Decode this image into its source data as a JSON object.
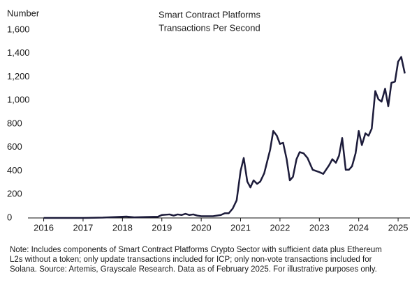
{
  "chart_data": {
    "type": "line",
    "title": [
      "Smart Contract Platforms",
      "Transactions Per Second"
    ],
    "y_label": "Number",
    "note": [
      "Note: Includes components of Smart Contract Platforms Crypto Sector with sufficient data plus Ethereum",
      "L2s without a token; only update transactions included for ICP; only non-vote transactions included for",
      "Solana. Source: Artemis, Grayscale Research. Data as of February 2025. For illustrative purposes only."
    ],
    "x": [
      2016.0,
      2017.0,
      2017.5,
      2018.0,
      2018.1,
      2018.3,
      2018.6,
      2018.9,
      2019.0,
      2019.2,
      2019.3,
      2019.4,
      2019.5,
      2019.6,
      2019.7,
      2019.8,
      2019.9,
      2020.0,
      2020.3,
      2020.5,
      2020.6,
      2020.7,
      2020.8,
      2020.9,
      2021.0,
      2021.08,
      2021.17,
      2021.25,
      2021.33,
      2021.42,
      2021.5,
      2021.6,
      2021.75,
      2021.83,
      2021.92,
      2022.0,
      2022.08,
      2022.17,
      2022.25,
      2022.33,
      2022.42,
      2022.5,
      2022.6,
      2022.7,
      2022.83,
      2023.0,
      2023.1,
      2023.25,
      2023.33,
      2023.42,
      2023.5,
      2023.58,
      2023.67,
      2023.75,
      2023.83,
      2023.92,
      2024.0,
      2024.08,
      2024.17,
      2024.25,
      2024.33,
      2024.42,
      2024.5,
      2024.58,
      2024.67,
      2024.75,
      2024.83,
      2024.92,
      2025.0,
      2025.08,
      2025.17
    ],
    "series": [
      {
        "name": "Transactions Per Second",
        "color": "#1c1b3a",
        "values": [
          0,
          0,
          3,
          10,
          12,
          5,
          8,
          10,
          25,
          30,
          20,
          30,
          25,
          35,
          25,
          30,
          20,
          15,
          15,
          25,
          40,
          40,
          80,
          150,
          400,
          510,
          310,
          260,
          320,
          290,
          310,
          380,
          580,
          740,
          700,
          630,
          640,
          500,
          320,
          350,
          500,
          560,
          550,
          510,
          410,
          390,
          375,
          450,
          500,
          470,
          530,
          680,
          410,
          410,
          440,
          550,
          740,
          620,
          720,
          700,
          760,
          1080,
          1010,
          990,
          1100,
          950,
          1150,
          1160,
          1330,
          1370,
          1230
        ]
      }
    ],
    "xlim": [
      2015.6,
      2025.3
    ],
    "xticks": [
      2016,
      2017,
      2018,
      2019,
      2020,
      2021,
      2022,
      2023,
      2024,
      2025
    ],
    "ylim": [
      0,
      1600
    ],
    "yticks": [
      0,
      200,
      400,
      600,
      800,
      {
        "value": 1000,
        "label": "1,000"
      },
      {
        "value": 1200,
        "label": "1,200"
      },
      {
        "value": 1400,
        "label": "1,400"
      },
      {
        "value": 1600,
        "label": "1,600"
      }
    ]
  }
}
